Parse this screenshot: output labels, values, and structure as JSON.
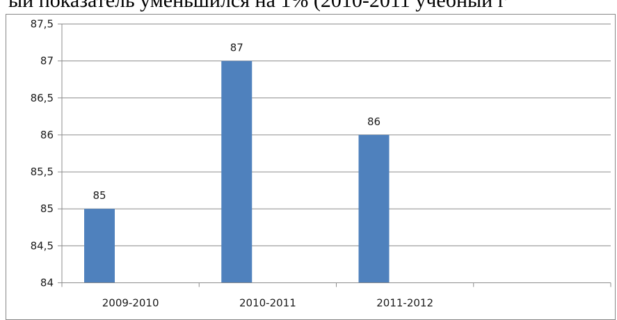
{
  "caption": {
    "text": "ый показатель уменьшился на 1% (2010-2011 учебный г"
  },
  "chart_data": {
    "type": "bar",
    "categories": [
      "2009-2010",
      "2010-2011",
      "2011-2012",
      ""
    ],
    "values": [
      85,
      87,
      86,
      null
    ],
    "data_labels": [
      "85",
      "87",
      "86",
      ""
    ],
    "yticks": [
      84,
      84.5,
      85,
      85.5,
      86,
      86.5,
      87,
      87.5
    ],
    "ytick_labels": [
      "84",
      "84,5",
      "85",
      "85,5",
      "86",
      "86,5",
      "87",
      "87,5"
    ],
    "ylim": [
      84,
      87.5
    ],
    "title": "",
    "xlabel": "",
    "ylabel": "",
    "grid": true,
    "legend": "none",
    "colors": {
      "bar": "#4f81bd",
      "grid": "#8c8c8c",
      "axis": "#8c8c8c"
    }
  }
}
